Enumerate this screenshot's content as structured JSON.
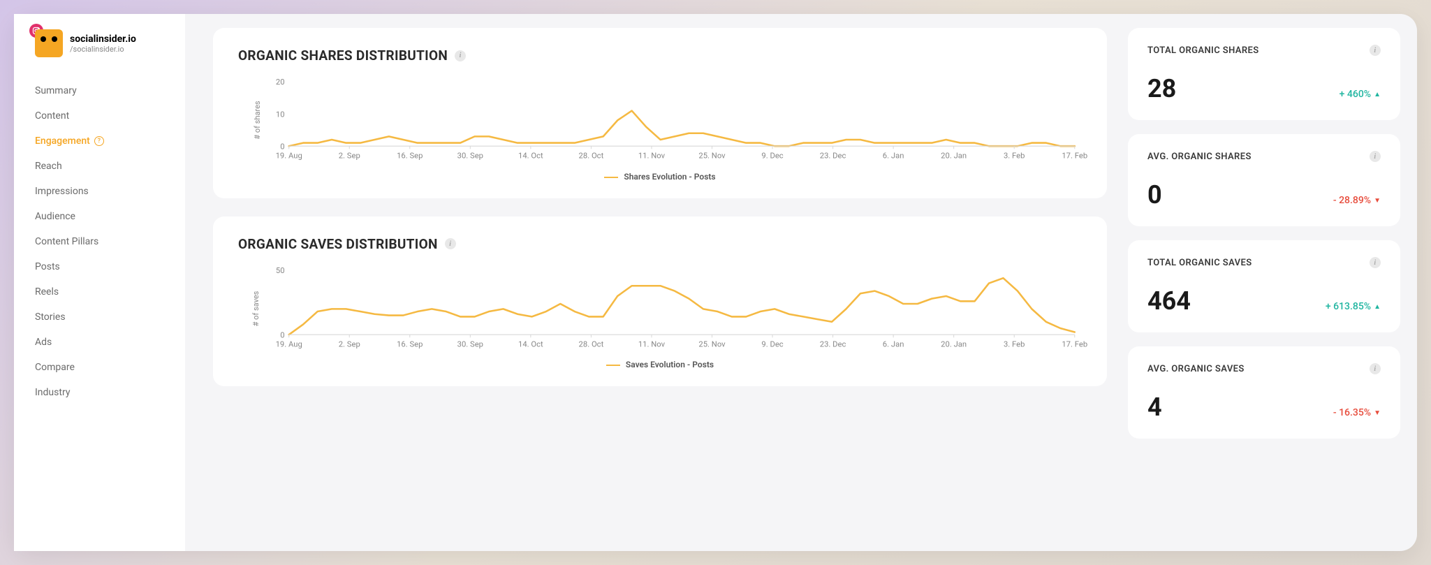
{
  "brand": {
    "title": "socialinsider.io",
    "subtitle": "/socialinsider.io",
    "logo_bg": "#f5a623",
    "badge_bg": "#e1306c"
  },
  "sidebar": {
    "items": [
      {
        "label": "Summary",
        "active": false
      },
      {
        "label": "Content",
        "active": false
      },
      {
        "label": "Engagement",
        "active": true,
        "has_help": true
      },
      {
        "label": "Reach",
        "active": false
      },
      {
        "label": "Impressions",
        "active": false
      },
      {
        "label": "Audience",
        "active": false
      },
      {
        "label": "Content Pillars",
        "active": false
      },
      {
        "label": "Posts",
        "active": false
      },
      {
        "label": "Reels",
        "active": false
      },
      {
        "label": "Stories",
        "active": false
      },
      {
        "label": "Ads",
        "active": false
      },
      {
        "label": "Compare",
        "active": false
      },
      {
        "label": "Industry",
        "active": false
      }
    ]
  },
  "charts": [
    {
      "title": "ORGANIC SHARES DISTRIBUTION",
      "ylabel": "# of shares",
      "legend": "Shares Evolution - Posts",
      "line_color": "#f5b942",
      "axis_color": "#d8d8d8",
      "text_color": "#888888",
      "ylim": [
        0,
        20
      ],
      "yticks": [
        0,
        10,
        20
      ],
      "xlabels": [
        "19. Aug",
        "2. Sep",
        "16. Sep",
        "30. Sep",
        "14. Oct",
        "28. Oct",
        "11. Nov",
        "25. Nov",
        "9. Dec",
        "23. Dec",
        "6. Jan",
        "20. Jan",
        "3. Feb",
        "17. Feb"
      ],
      "values": [
        0,
        1,
        1,
        2,
        1,
        1,
        2,
        3,
        2,
        1,
        1,
        1,
        1,
        3,
        3,
        2,
        1,
        1,
        1,
        1,
        1,
        2,
        3,
        8,
        11,
        6,
        2,
        3,
        4,
        4,
        3,
        2,
        1,
        1,
        0,
        0,
        1,
        1,
        1,
        2,
        2,
        1,
        1,
        1,
        1,
        1,
        2,
        1,
        1,
        0,
        0,
        0,
        1,
        1,
        0,
        0
      ]
    },
    {
      "title": "ORGANIC SAVES DISTRIBUTION",
      "ylabel": "# of saves",
      "legend": "Saves Evolution - Posts",
      "line_color": "#f5b942",
      "axis_color": "#d8d8d8",
      "text_color": "#888888",
      "ylim": [
        0,
        50
      ],
      "yticks": [
        0,
        50
      ],
      "xlabels": [
        "19. Aug",
        "2. Sep",
        "16. Sep",
        "30. Sep",
        "14. Oct",
        "28. Oct",
        "11. Nov",
        "25. Nov",
        "9. Dec",
        "23. Dec",
        "6. Jan",
        "20. Jan",
        "3. Feb",
        "17. Feb"
      ],
      "values": [
        0,
        8,
        18,
        20,
        20,
        18,
        16,
        15,
        15,
        18,
        20,
        18,
        14,
        14,
        18,
        20,
        16,
        14,
        18,
        24,
        18,
        14,
        14,
        30,
        38,
        38,
        38,
        34,
        28,
        20,
        18,
        14,
        14,
        18,
        20,
        16,
        14,
        12,
        10,
        20,
        32,
        34,
        30,
        24,
        24,
        28,
        30,
        26,
        26,
        40,
        44,
        34,
        20,
        10,
        5,
        2
      ]
    }
  ],
  "stats": [
    {
      "label": "TOTAL ORGANIC SHARES",
      "value": "28",
      "delta": "+ 460%",
      "direction": "up"
    },
    {
      "label": "AVG. ORGANIC SHARES",
      "value": "0",
      "delta": "- 28.89%",
      "direction": "down"
    },
    {
      "label": "TOTAL ORGANIC SAVES",
      "value": "464",
      "delta": "+ 613.85%",
      "direction": "up"
    },
    {
      "label": "AVG. ORGANIC SAVES",
      "value": "4",
      "delta": "- 16.35%",
      "direction": "down"
    }
  ],
  "colors": {
    "up": "#20b5a0",
    "down": "#e74c3c",
    "card_bg": "#ffffff",
    "page_bg": "#f5f5f7"
  }
}
